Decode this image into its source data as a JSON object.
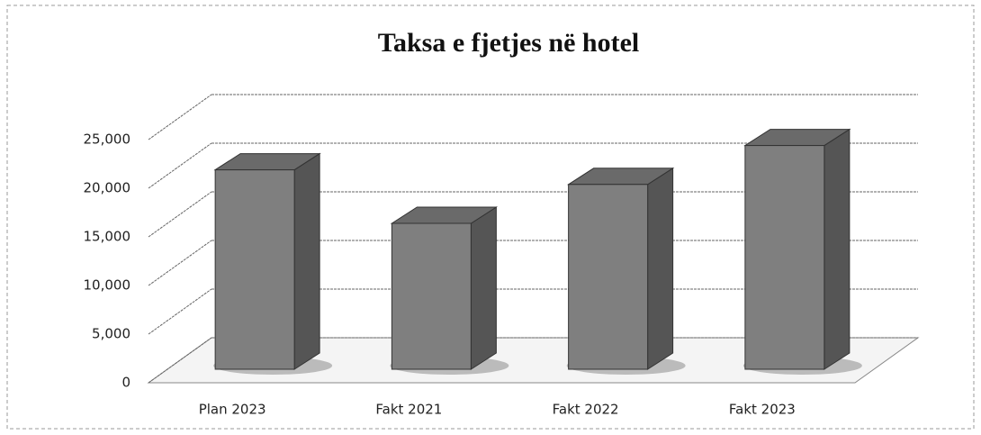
{
  "chart_data": {
    "type": "bar3d",
    "title": "Taksa e fjetjes në hotel",
    "categories": [
      "Plan 2023",
      "Fakt 2021",
      "Fakt 2022",
      "Fakt 2023"
    ],
    "values": [
      20500,
      15000,
      19000,
      23000
    ],
    "color": "#7f7f7f",
    "ylim": [
      0,
      25000
    ],
    "yticks": [
      0,
      {
        "value": 5000,
        "label": "5,000"
      },
      {
        "value": 10000,
        "label": "10,000"
      },
      {
        "value": 15000,
        "label": "15,000"
      },
      {
        "value": 20000,
        "label": "20,000"
      },
      {
        "value": 25000,
        "label": "25,000"
      }
    ],
    "grid": true
  }
}
